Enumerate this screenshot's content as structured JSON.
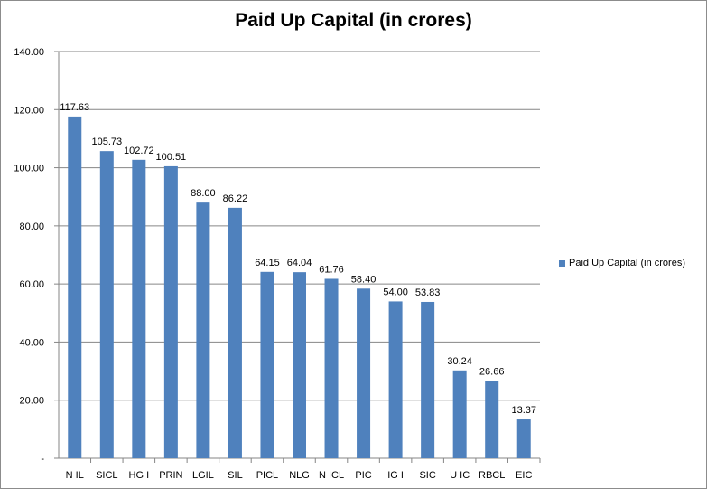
{
  "chart_data": {
    "type": "bar",
    "title": "Paid Up Capital (in crores)",
    "xlabel": "",
    "ylabel": "",
    "categories": [
      "N IL",
      "SICL",
      "HG I",
      "PRIN",
      "LGIL",
      "SIL",
      "PICL",
      "NLG",
      "N ICL",
      "PIC",
      "IG I",
      "SIC",
      "U IC",
      "RBCL",
      "EIC"
    ],
    "series": [
      {
        "name": "Paid Up Capital (in crores)",
        "values": [
          117.63,
          105.73,
          102.72,
          100.51,
          88.0,
          86.22,
          64.15,
          64.04,
          61.76,
          58.4,
          54.0,
          53.83,
          30.24,
          26.66,
          13.37
        ],
        "labels": [
          "117.63",
          "105.73",
          "102.72",
          "100.51",
          "88.00",
          "86.22",
          "64.15",
          "64.04",
          "61.76",
          "58.40",
          "54.00",
          "53.83",
          "30.24",
          "26.66",
          "13.37"
        ]
      }
    ],
    "ylim": [
      0,
      140
    ],
    "yticks": [
      "-",
      "20.00",
      "40.00",
      "60.00",
      "80.00",
      "100.00",
      "120.00",
      "140.00"
    ],
    "grid": true,
    "legend_position": "right",
    "colors": {
      "bar": "#4f81bd",
      "grid": "#868686",
      "axis": "#868686"
    }
  }
}
